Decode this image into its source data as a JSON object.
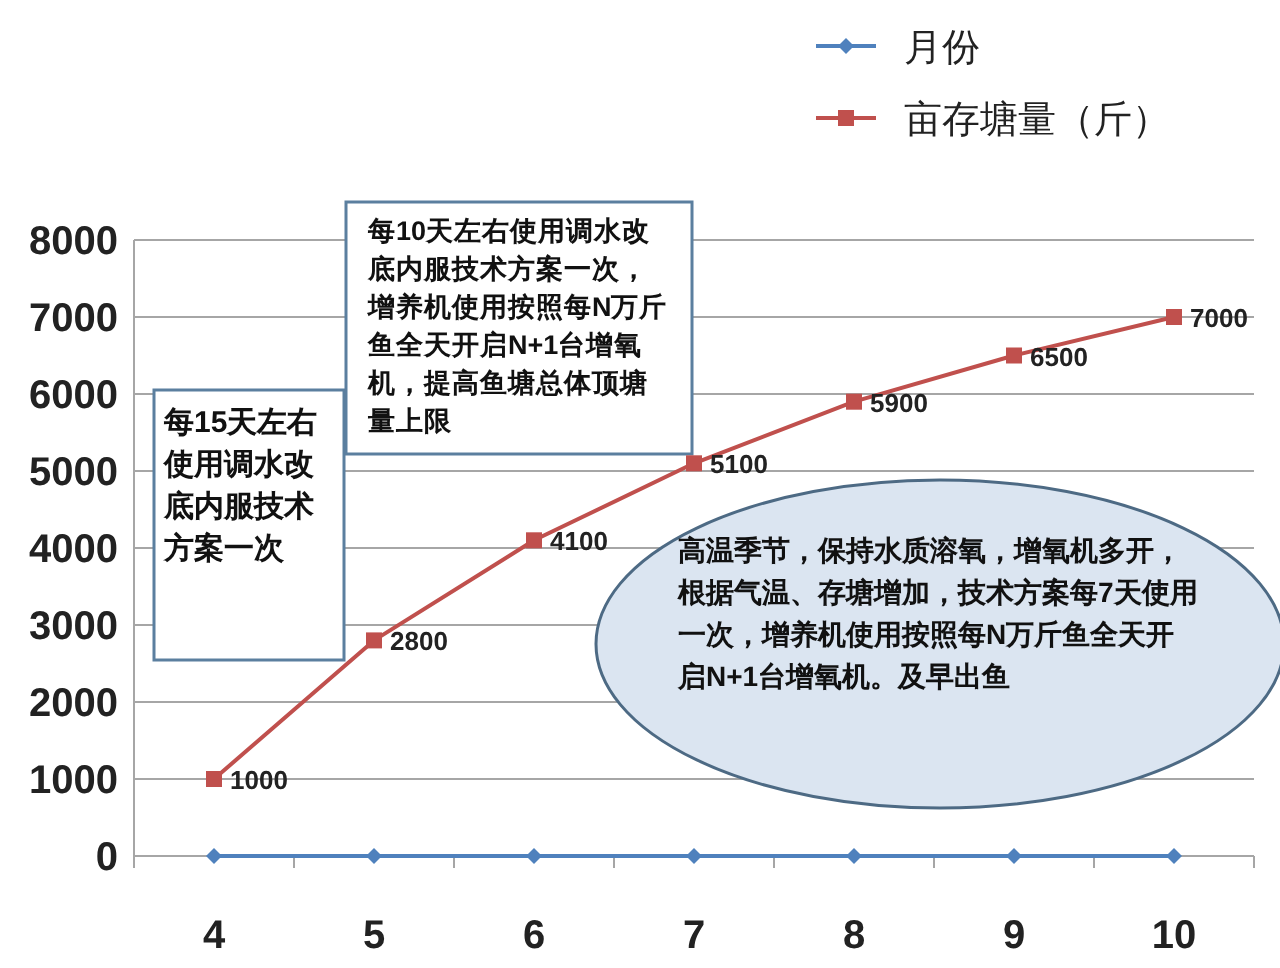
{
  "chart_data": {
    "type": "line",
    "categories": [
      "4",
      "5",
      "6",
      "7",
      "8",
      "9",
      "10"
    ],
    "ylim": [
      0,
      8000
    ],
    "yticks": [
      0,
      1000,
      2000,
      3000,
      4000,
      5000,
      6000,
      7000,
      8000
    ],
    "grid": "y",
    "legend": "top right",
    "series": [
      {
        "name": "月份",
        "color": "#4f81bd",
        "marker": "diamond",
        "values": [
          0,
          0,
          0,
          0,
          0,
          0,
          0
        ]
      },
      {
        "name": "亩存塘量（斤）",
        "color": "#c0504d",
        "marker": "square",
        "values": [
          1000,
          2800,
          4100,
          5100,
          5900,
          6500,
          7000
        ],
        "value_labels": [
          "1000",
          "2800",
          "4100",
          "5100",
          "5900",
          "6500",
          "7000"
        ]
      }
    ],
    "annotations": [
      "每15天左右使用调水改底内服技术方案一次",
      "每10天左右使用调水改底内服技术方案一次，增养机使用按照每N万斤鱼全天开启N+1台增氧机，提高鱼塘总体顶塘量上限",
      "高温季节，保持水质溶氧，增氧机多开，根据气温、存塘增加，技术方案每7天使用一次，增养机使用按照每N万斤鱼全天开启N+1台增氧机。及早出鱼"
    ]
  }
}
